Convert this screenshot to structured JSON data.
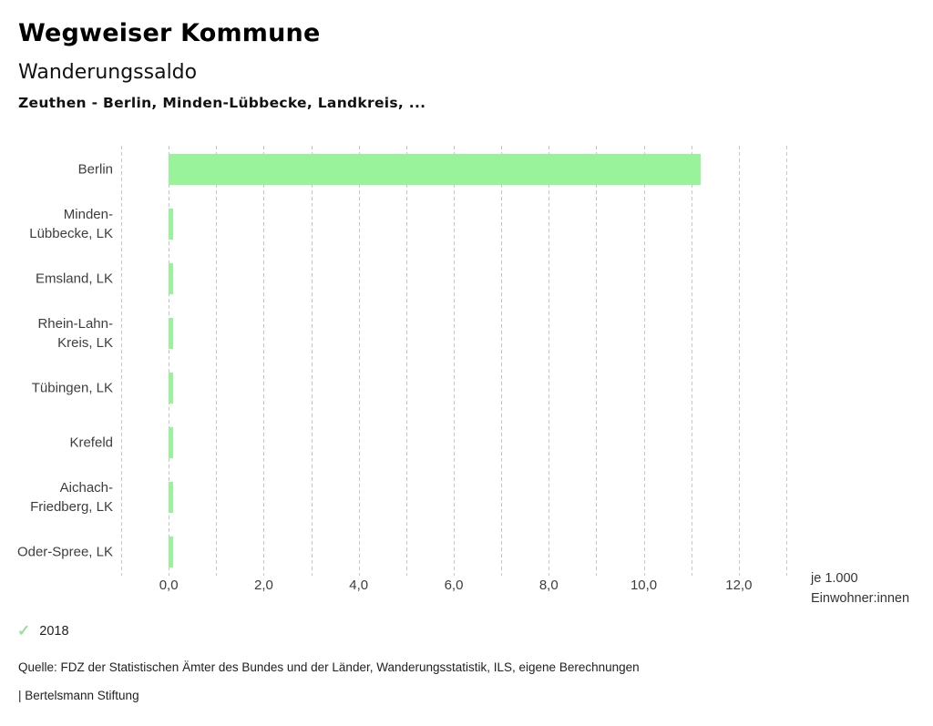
{
  "header": {
    "app_title": "Wegweiser Kommune",
    "chart_title": "Wanderungssaldo",
    "subtitle": "Zeuthen - Berlin, Minden-Lübbecke, Landkreis, ..."
  },
  "chart_data": {
    "type": "bar",
    "orientation": "horizontal",
    "title": "Wanderungssaldo",
    "subtitle": "Zeuthen - Berlin, Minden-Lübbecke, Landkreis, ...",
    "categories": [
      "Berlin",
      "Minden-\nLübbecke, LK",
      "Emsland, LK",
      "Rhein-Lahn-\nKreis, LK",
      "Tübingen, LK",
      "Krefeld",
      "Aichach-\nFriedberg, LK",
      "Oder-Spree, LK"
    ],
    "values": [
      11.2,
      0.1,
      0.1,
      0.1,
      0.1,
      0.1,
      0.1,
      0.1
    ],
    "series_name": "2018",
    "xlabel": "je 1.000 Einwohner:innen",
    "xlim": [
      -1,
      13
    ],
    "grid": true,
    "grid_step": 1,
    "tick_values": [
      0,
      2,
      4,
      6,
      8,
      10,
      12
    ],
    "tick_labels": [
      "0,0",
      "2,0",
      "4,0",
      "6,0",
      "8,0",
      "10,0",
      "12,0"
    ],
    "bar_color": "#98f39a",
    "grid_color": "#c6c6c6",
    "legend_position": "bottom-left"
  },
  "axis_note": {
    "line1": "je 1.000",
    "line2": "Einwohner:innen"
  },
  "legend": {
    "year": "2018",
    "check_icon": "check-icon",
    "check_color": "#9adf9d"
  },
  "footer": {
    "source": "Quelle: FDZ der Statistischen Ämter des Bundes und der Länder, Wanderungsstatistik, ILS, eigene Berechnungen",
    "attribution": "| Bertelsmann Stiftung"
  }
}
